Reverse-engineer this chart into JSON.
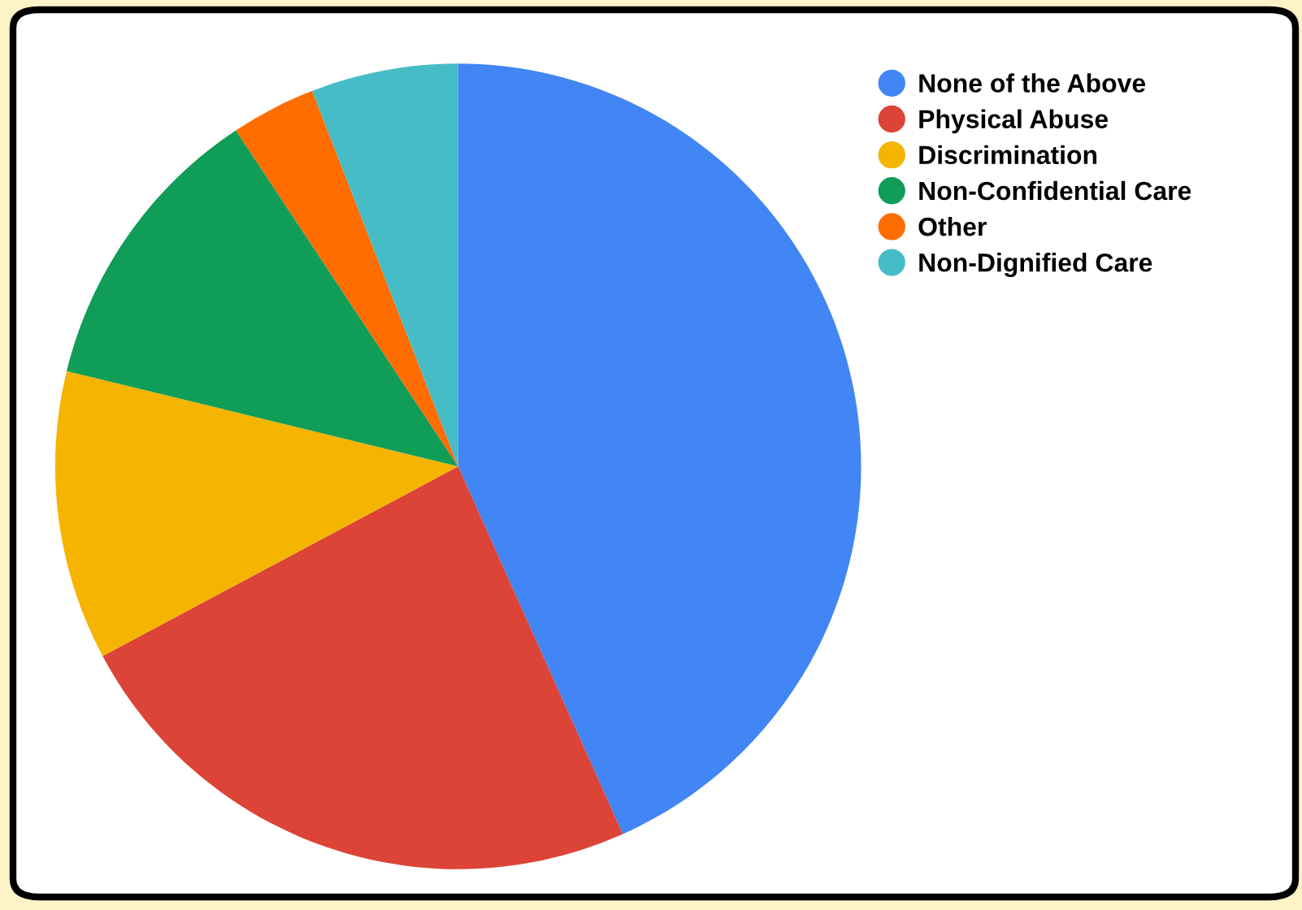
{
  "chart_data": {
    "type": "pie",
    "categories": [
      "None of the Above",
      "Physical Abuse",
      "Discrimination",
      "Non-Confidential Care",
      "Other",
      "Non-Dignified Care"
    ],
    "values": [
      43.3,
      23.9,
      11.6,
      11.9,
      3.4,
      5.9
    ],
    "colors": [
      "#4285f4",
      "#db4437",
      "#f4b400",
      "#0f9d58",
      "#ff6d01",
      "#46bdc6"
    ],
    "legend": "top right"
  }
}
